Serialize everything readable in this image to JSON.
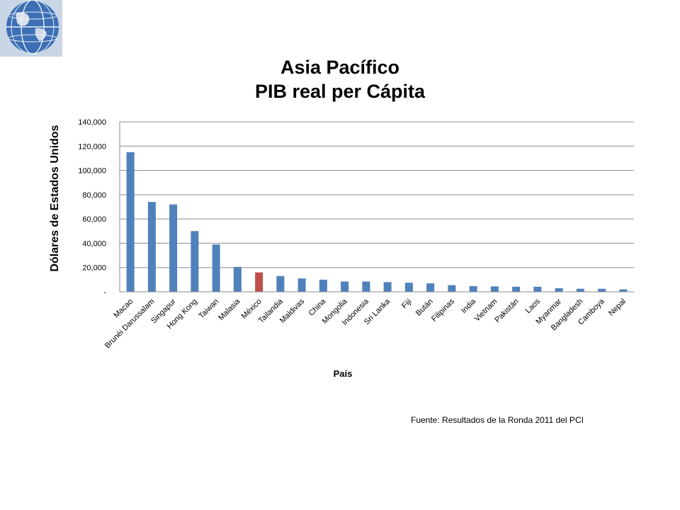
{
  "chart_data": {
    "type": "bar",
    "title": [
      "Asia Pacífico",
      "PIB real per Cápita"
    ],
    "xlabel": "País",
    "ylabel": "Dólares de Estados Unidos",
    "ylim": [
      0,
      140000
    ],
    "yticks": [
      0,
      20000,
      40000,
      60000,
      80000,
      100000,
      120000,
      140000
    ],
    "ytick_labels": [
      "-",
      "20,000",
      "40,000",
      "60,000",
      "80,000",
      "100,000",
      "120,000",
      "140,000"
    ],
    "grid": true,
    "categories": [
      "Macao",
      "Brunéi Darussalam",
      "Singapur",
      "Hong Kong",
      "Taiwan",
      "Malasia",
      "México",
      "Tailandia",
      "Maldivas",
      "China",
      "Mongolia",
      "Indonesia",
      "Sri Lanka",
      "Fiji",
      "Bután",
      "Filipinas",
      "India",
      "Vietnam",
      "Pakistán",
      "Laos",
      "Myanmar",
      "Bangladesh",
      "Camboya",
      "Nepal"
    ],
    "values": [
      115000,
      74000,
      72000,
      50000,
      39000,
      20500,
      16000,
      13000,
      11000,
      10000,
      8500,
      8500,
      8000,
      7500,
      7000,
      5500,
      4700,
      4500,
      4200,
      4200,
      3000,
      2500,
      2500,
      2000
    ],
    "bar_color": "#4F81BD",
    "highlight_category": "México",
    "highlight_color": "#C0504D"
  },
  "source_note": "Fuente: Resultados de la Ronda 2011 del PCI",
  "logo": {
    "icon": "globe-icon"
  }
}
